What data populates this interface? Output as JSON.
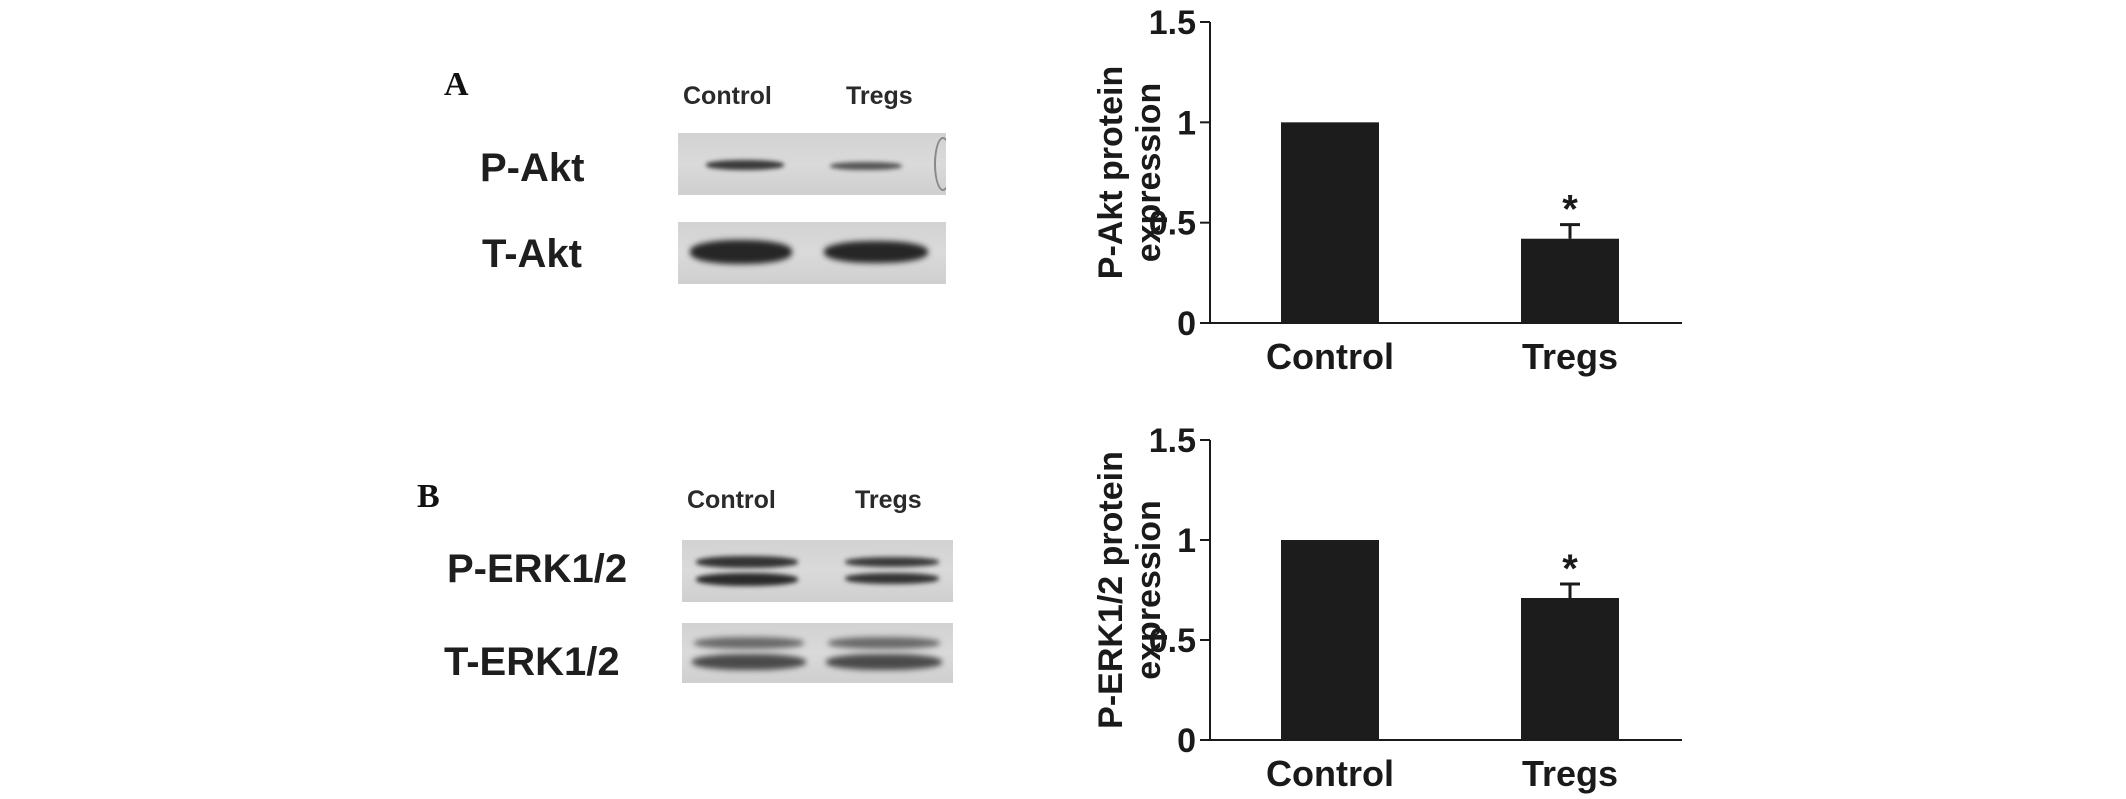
{
  "panel_a": {
    "letter": "A",
    "lanes": [
      "Control",
      "Tregs"
    ],
    "blots": [
      "P-Akt",
      "T-Akt"
    ]
  },
  "panel_b": {
    "letter": "B",
    "lanes": [
      "Control",
      "Tregs"
    ],
    "blots": [
      "P-ERK1/2",
      "T-ERK1/2"
    ]
  },
  "chart_data": [
    {
      "type": "bar",
      "categories": [
        "Control",
        "Tregs"
      ],
      "values": [
        1.0,
        0.42
      ],
      "errors": [
        0,
        0.07
      ],
      "significance": [
        "",
        "*"
      ],
      "ylabel_lines": [
        "P-Akt protein",
        "expression"
      ],
      "xlabel": "",
      "ylim": [
        0,
        1.5
      ],
      "yticks": [
        "0",
        "0.5",
        "1",
        "1.5"
      ],
      "ytick_values": [
        0,
        0.5,
        1,
        1.5
      ],
      "bar_color": "#1c1c1c"
    },
    {
      "type": "bar",
      "categories": [
        "Control",
        "Tregs"
      ],
      "values": [
        1.0,
        0.71
      ],
      "errors": [
        0,
        0.07
      ],
      "significance": [
        "",
        "*"
      ],
      "ylabel_lines": [
        "P-ERK1/2 protein",
        "expression"
      ],
      "xlabel": "",
      "ylim": [
        0,
        1.5
      ],
      "yticks": [
        "0",
        "0.5",
        "1",
        "1.5"
      ],
      "ytick_values": [
        0,
        0.5,
        1,
        1.5
      ],
      "bar_color": "#1c1c1c"
    }
  ]
}
